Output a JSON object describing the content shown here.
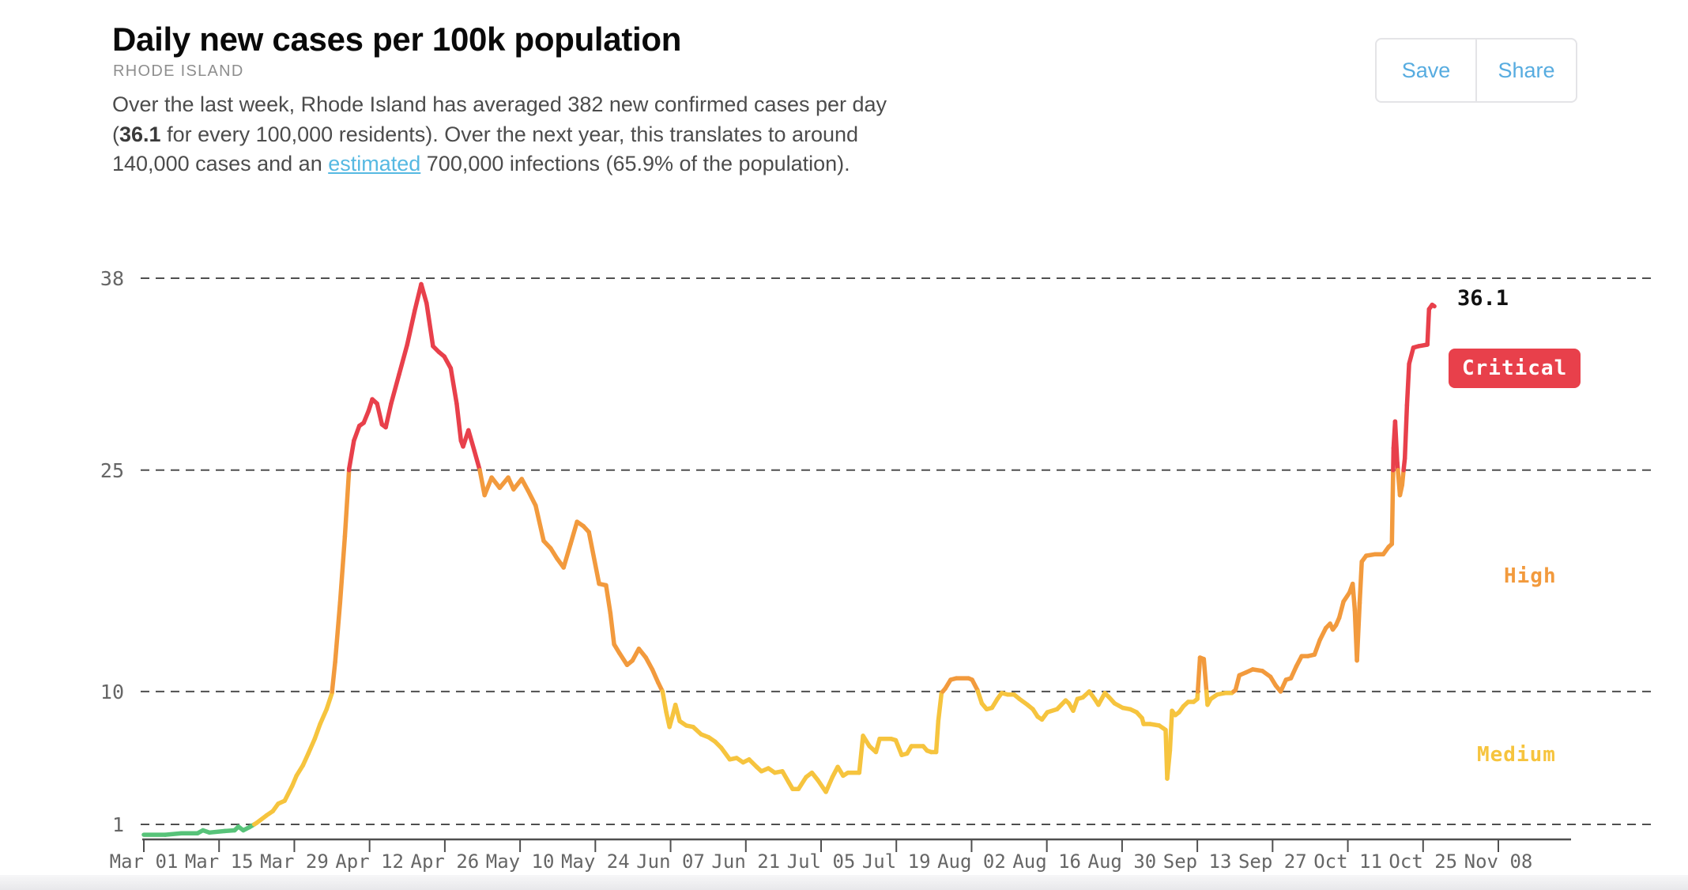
{
  "header": {
    "title": "Daily new cases per 100k population",
    "subtitle": "RHODE ISLAND",
    "save_label": "Save",
    "share_label": "Share"
  },
  "summary": {
    "part1": "Over the last week, Rhode Island has averaged 382 new confirmed cases per day (",
    "bold_value": "36.1",
    "part2": " for every 100,000 residents). Over the next year, this translates to around 140,000 cases and an ",
    "link_text": "estimated",
    "part3": " 700,000 infections (65.9% of the population)."
  },
  "palette": {
    "link_blue": "#56b9e2",
    "button_blue": "#57ace0"
  },
  "chart_data": {
    "type": "line",
    "title": "Daily new cases per 100k population",
    "region": "Rhode Island",
    "grid": "dashed-horizontal",
    "y_ticks": [
      38,
      25,
      10,
      1
    ],
    "y_range": [
      0,
      38
    ],
    "x_tick_interval_days": 14,
    "x_tick_labels": [
      "Mar 01",
      "Mar 15",
      "Mar 29",
      "Apr 12",
      "Apr 26",
      "May 10",
      "May 24",
      "Jun 07",
      "Jun 21",
      "Jul 05",
      "Jul 19",
      "Aug 02",
      "Aug 16",
      "Aug 30",
      "Sep 13",
      "Sep 27",
      "Oct 11",
      "Oct 25",
      "Nov 08"
    ],
    "thresholds": {
      "low_medium": 1,
      "medium_high": 10,
      "high_critical": 25
    },
    "colors": {
      "low": "#57c379",
      "medium": "#f6c43e",
      "high": "#f29a3d",
      "critical": "#e8404b",
      "grid": "#4f4f4f",
      "axis": "#4f4f4f",
      "tick_label": "#666666"
    },
    "annotations": {
      "current_value": "36.1",
      "critical_badge": "Critical",
      "high_label": "High",
      "medium_label": "Medium"
    },
    "points": [
      [
        0,
        0.3
      ],
      [
        4,
        0.3
      ],
      [
        7,
        0.4
      ],
      [
        10,
        0.4
      ],
      [
        11,
        0.6
      ],
      [
        12.2,
        0.45
      ],
      [
        15.1,
        0.55
      ],
      [
        16.9,
        0.6
      ],
      [
        17.6,
        0.85
      ],
      [
        18.5,
        0.6
      ],
      [
        19.6,
        0.8
      ],
      [
        21,
        1.1
      ],
      [
        22.8,
        1.6
      ],
      [
        24,
        1.9
      ],
      [
        25,
        2.4
      ],
      [
        26.2,
        2.6
      ],
      [
        27.6,
        3.6
      ],
      [
        28.4,
        4.3
      ],
      [
        29.6,
        5.0
      ],
      [
        30.6,
        5.8
      ],
      [
        31.8,
        6.8
      ],
      [
        32.8,
        7.8
      ],
      [
        34,
        8.8
      ],
      [
        35,
        9.9
      ],
      [
        35.6,
        12
      ],
      [
        36.5,
        16
      ],
      [
        37.4,
        20.5
      ],
      [
        38.2,
        25.1
      ],
      [
        39.1,
        27
      ],
      [
        40.1,
        28
      ],
      [
        40.9,
        28.2
      ],
      [
        41.8,
        29
      ],
      [
        42.5,
        29.8
      ],
      [
        43.4,
        29.5
      ],
      [
        44.3,
        28.1
      ],
      [
        45,
        27.9
      ],
      [
        46,
        29.5
      ],
      [
        47.5,
        31.5
      ],
      [
        49,
        33.5
      ],
      [
        50.4,
        35.8
      ],
      [
        51.6,
        37.6
      ],
      [
        52.6,
        36.3
      ],
      [
        53.8,
        33.4
      ],
      [
        54.9,
        33
      ],
      [
        55.9,
        32.7
      ],
      [
        57.1,
        31.9
      ],
      [
        58.2,
        29.5
      ],
      [
        59,
        27
      ],
      [
        59.4,
        26.6
      ],
      [
        60.4,
        27.7
      ],
      [
        61.5,
        26.3
      ],
      [
        62.5,
        25
      ],
      [
        63.4,
        23.3
      ],
      [
        64.7,
        24.5
      ],
      [
        66.2,
        23.8
      ],
      [
        67.8,
        24.5
      ],
      [
        68.8,
        23.7
      ],
      [
        70.3,
        24.4
      ],
      [
        71.5,
        23.6
      ],
      [
        72.9,
        22.6
      ],
      [
        74.4,
        20.2
      ],
      [
        75.7,
        19.7
      ],
      [
        76.9,
        19
      ],
      [
        78.1,
        18.4
      ],
      [
        79.4,
        20
      ],
      [
        80.6,
        21.5
      ],
      [
        81.8,
        21.2
      ],
      [
        82.8,
        20.8
      ],
      [
        84.7,
        17.3
      ],
      [
        86,
        17.2
      ],
      [
        86.8,
        15.3
      ],
      [
        87.5,
        13.2
      ],
      [
        88.5,
        12.6
      ],
      [
        89.9,
        11.8
      ],
      [
        90.9,
        12.1
      ],
      [
        92.1,
        12.9
      ],
      [
        93.4,
        12.3
      ],
      [
        94.6,
        11.5
      ],
      [
        95.7,
        10.6
      ],
      [
        96.5,
        10
      ],
      [
        97.2,
        8.6
      ],
      [
        97.8,
        7.6
      ],
      [
        98.4,
        8.4
      ],
      [
        98.9,
        9.1
      ],
      [
        99.7,
        8
      ],
      [
        100.9,
        7.7
      ],
      [
        102.2,
        7.6
      ],
      [
        103.7,
        7.1
      ],
      [
        105.1,
        6.9
      ],
      [
        106.3,
        6.6
      ],
      [
        107.4,
        6.2
      ],
      [
        109,
        5.4
      ],
      [
        110.3,
        5.5
      ],
      [
        111.5,
        5.2
      ],
      [
        112.6,
        5.4
      ],
      [
        114,
        4.9
      ],
      [
        114.9,
        4.6
      ],
      [
        116.2,
        4.8
      ],
      [
        117.4,
        4.5
      ],
      [
        118.8,
        4.6
      ],
      [
        119.9,
        3.9
      ],
      [
        120.7,
        3.4
      ],
      [
        121.8,
        3.4
      ],
      [
        123.2,
        4.2
      ],
      [
        124.3,
        4.5
      ],
      [
        125.4,
        4
      ],
      [
        126.9,
        3.2
      ],
      [
        128.1,
        4.2
      ],
      [
        129.1,
        4.9
      ],
      [
        130.1,
        4.3
      ],
      [
        131,
        4.5
      ],
      [
        133.1,
        4.5
      ],
      [
        133.8,
        7
      ],
      [
        135,
        6.3
      ],
      [
        136.2,
        5.9
      ],
      [
        136.9,
        6.8
      ],
      [
        139,
        6.8
      ],
      [
        139.9,
        6.7
      ],
      [
        141,
        5.7
      ],
      [
        142,
        5.8
      ],
      [
        142.8,
        6.3
      ],
      [
        145,
        6.3
      ],
      [
        145.7,
        6
      ],
      [
        146.5,
        5.9
      ],
      [
        147.4,
        5.9
      ],
      [
        147.8,
        8
      ],
      [
        148.4,
        9.9
      ],
      [
        149.1,
        10.2
      ],
      [
        150.1,
        10.8
      ],
      [
        151.2,
        10.9
      ],
      [
        153.4,
        10.9
      ],
      [
        154.1,
        10.8
      ],
      [
        155.1,
        10.1
      ],
      [
        155.9,
        9.2
      ],
      [
        156.8,
        8.8
      ],
      [
        157.8,
        8.9
      ],
      [
        158.8,
        9.5
      ],
      [
        159.6,
        9.9
      ],
      [
        160.7,
        9.8
      ],
      [
        161.9,
        9.8
      ],
      [
        162.9,
        9.5
      ],
      [
        164.4,
        9.1
      ],
      [
        165.4,
        8.8
      ],
      [
        166.3,
        8.3
      ],
      [
        167.1,
        8.1
      ],
      [
        168.1,
        8.6
      ],
      [
        169.9,
        8.8
      ],
      [
        170.7,
        9.1
      ],
      [
        171.5,
        9.4
      ],
      [
        172.1,
        9.2
      ],
      [
        172.9,
        8.7
      ],
      [
        173.7,
        9.5
      ],
      [
        174.7,
        9.6
      ],
      [
        175.9,
        10
      ],
      [
        176.9,
        9.5
      ],
      [
        177.6,
        9.1
      ],
      [
        178.8,
        9.9
      ],
      [
        179.6,
        9.6
      ],
      [
        180.6,
        9.2
      ],
      [
        182.1,
        8.9
      ],
      [
        183.5,
        8.8
      ],
      [
        184.7,
        8.6
      ],
      [
        185.7,
        8.2
      ],
      [
        186,
        7.8
      ],
      [
        187.2,
        7.8
      ],
      [
        188.9,
        7.7
      ],
      [
        189.7,
        7.5
      ],
      [
        190.1,
        7.4
      ],
      [
        190.4,
        4.1
      ],
      [
        190.9,
        6
      ],
      [
        191.3,
        8.7
      ],
      [
        191.9,
        8.4
      ],
      [
        192.6,
        8.6
      ],
      [
        193.4,
        9
      ],
      [
        194.3,
        9.3
      ],
      [
        195.3,
        9.3
      ],
      [
        196,
        9.5
      ],
      [
        196.5,
        12.3
      ],
      [
        197.2,
        12.2
      ],
      [
        197.9,
        9.1
      ],
      [
        198.5,
        9.5
      ],
      [
        199.7,
        9.8
      ],
      [
        201.2,
        9.9
      ],
      [
        202.4,
        9.9
      ],
      [
        203.1,
        10.1
      ],
      [
        203.8,
        11.1
      ],
      [
        205.1,
        11.3
      ],
      [
        206.3,
        11.5
      ],
      [
        208.1,
        11.4
      ],
      [
        209.6,
        11
      ],
      [
        210.6,
        10.4
      ],
      [
        211.5,
        10
      ],
      [
        212.5,
        10.8
      ],
      [
        213.4,
        10.9
      ],
      [
        214.4,
        11.7
      ],
      [
        215.4,
        12.4
      ],
      [
        216.6,
        12.4
      ],
      [
        217.8,
        12.5
      ],
      [
        218.8,
        13.5
      ],
      [
        219.9,
        14.3
      ],
      [
        220.7,
        14.6
      ],
      [
        221.2,
        14.2
      ],
      [
        221.8,
        14.5
      ],
      [
        222.4,
        15
      ],
      [
        223.2,
        16.1
      ],
      [
        224.3,
        16.7
      ],
      [
        224.9,
        17.3
      ],
      [
        225.3,
        15.5
      ],
      [
        225.7,
        12.1
      ],
      [
        226.2,
        16
      ],
      [
        226.6,
        18.8
      ],
      [
        227.4,
        19.2
      ],
      [
        229.1,
        19.3
      ],
      [
        230.6,
        19.3
      ],
      [
        231.6,
        19.8
      ],
      [
        232.2,
        20
      ],
      [
        232.5,
        26.5
      ],
      [
        232.8,
        28.3
      ],
      [
        233.2,
        25.5
      ],
      [
        233.7,
        23.3
      ],
      [
        234.1,
        24
      ],
      [
        234.6,
        25.8
      ],
      [
        235,
        29.4
      ],
      [
        235.4,
        32.2
      ],
      [
        236.2,
        33.3
      ],
      [
        237.2,
        33.4
      ],
      [
        238.8,
        33.5
      ],
      [
        239.1,
        35.9
      ],
      [
        239.7,
        36.2
      ],
      [
        240.1,
        36.1
      ]
    ]
  }
}
